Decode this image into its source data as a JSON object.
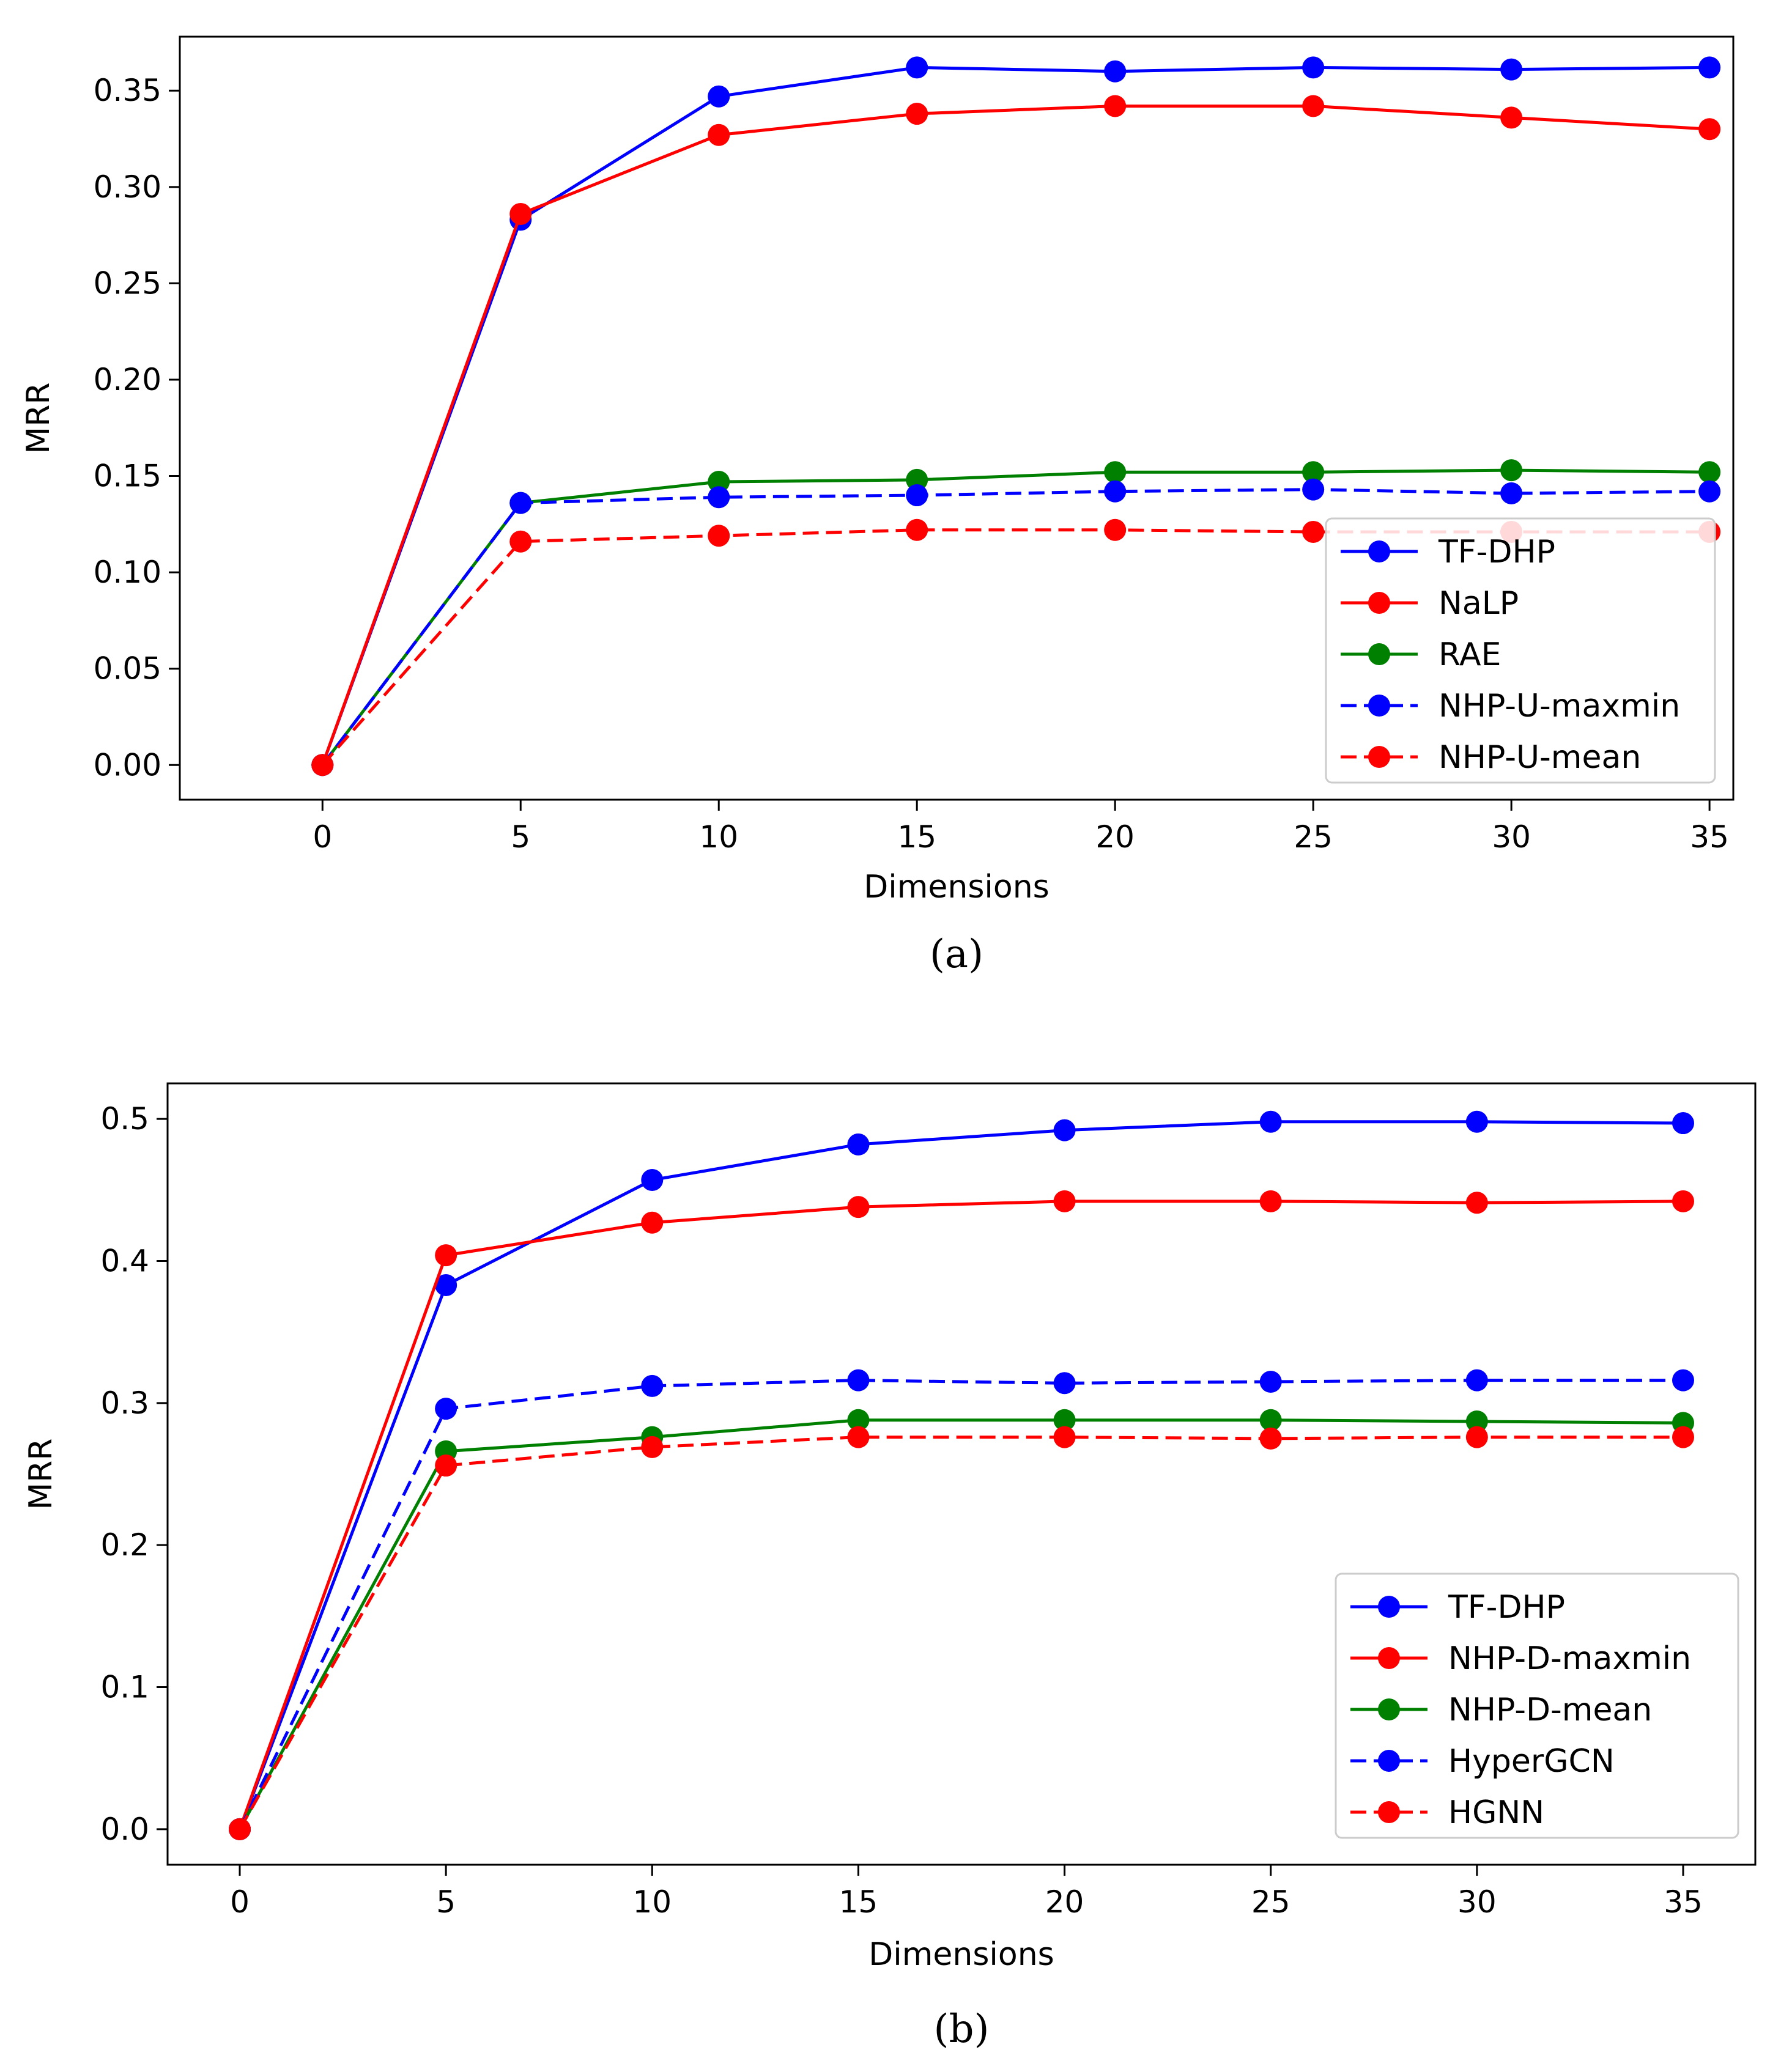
{
  "chart_data": [
    {
      "type": "line",
      "caption": "(a)",
      "xlabel": "Dimensions",
      "ylabel": "MRR",
      "xlim": [
        -3.6,
        35.6
      ],
      "ylim": [
        -0.018,
        0.378
      ],
      "x_ticks": [
        0,
        5,
        10,
        15,
        20,
        25,
        30,
        35
      ],
      "x_tick_labels": [
        "0",
        "5",
        "10",
        "15",
        "20",
        "25",
        "30",
        "35"
      ],
      "y_ticks": [
        0.0,
        0.05,
        0.1,
        0.15,
        0.2,
        0.25,
        0.3,
        0.35
      ],
      "y_tick_labels": [
        "0.00",
        "0.05",
        "0.10",
        "0.15",
        "0.20",
        "0.25",
        "0.30",
        "0.35"
      ],
      "legend_position": "lower-right",
      "x": [
        0,
        5,
        10,
        15,
        20,
        25,
        30,
        35
      ],
      "series": [
        {
          "name": "TF-DHP",
          "color": "#0000ff",
          "linestyle": "solid",
          "values": [
            0.0,
            0.283,
            0.347,
            0.362,
            0.36,
            0.362,
            0.361,
            0.362
          ]
        },
        {
          "name": "NaLP",
          "color": "#ff0000",
          "linestyle": "solid",
          "values": [
            0.0,
            0.286,
            0.327,
            0.338,
            0.342,
            0.342,
            0.336,
            0.33
          ]
        },
        {
          "name": "RAE",
          "color": "#008000",
          "linestyle": "solid",
          "values": [
            0.0,
            0.136,
            0.147,
            0.148,
            0.152,
            0.152,
            0.153,
            0.152
          ]
        },
        {
          "name": "NHP-U-maxmin",
          "color": "#0000ff",
          "linestyle": "dashed",
          "values": [
            0.0,
            0.136,
            0.139,
            0.14,
            0.142,
            0.143,
            0.141,
            0.142
          ]
        },
        {
          "name": "NHP-U-mean",
          "color": "#ff0000",
          "linestyle": "dashed",
          "values": [
            0.0,
            0.116,
            0.119,
            0.122,
            0.122,
            0.121,
            0.121,
            0.121
          ]
        }
      ]
    },
    {
      "type": "line",
      "caption": "(b)",
      "xlabel": "Dimensions",
      "ylabel": "MRR",
      "xlim": [
        -1.75,
        36.75
      ],
      "ylim": [
        -0.025,
        0.525
      ],
      "x_ticks": [
        0,
        5,
        10,
        15,
        20,
        25,
        30,
        35
      ],
      "x_tick_labels": [
        "0",
        "5",
        "10",
        "15",
        "20",
        "25",
        "30",
        "35"
      ],
      "y_ticks": [
        0.0,
        0.1,
        0.2,
        0.3,
        0.4,
        0.5
      ],
      "y_tick_labels": [
        "0.0",
        "0.1",
        "0.2",
        "0.3",
        "0.4",
        "0.5"
      ],
      "legend_position": "lower-right",
      "x": [
        0,
        5,
        10,
        15,
        20,
        25,
        30,
        35
      ],
      "series": [
        {
          "name": "TF-DHP",
          "color": "#0000ff",
          "linestyle": "solid",
          "values": [
            0.0,
            0.383,
            0.457,
            0.482,
            0.492,
            0.498,
            0.498,
            0.497
          ]
        },
        {
          "name": "NHP-D-maxmin",
          "color": "#ff0000",
          "linestyle": "solid",
          "values": [
            0.0,
            0.404,
            0.427,
            0.438,
            0.442,
            0.442,
            0.441,
            0.442
          ]
        },
        {
          "name": "NHP-D-mean",
          "color": "#008000",
          "linestyle": "solid",
          "values": [
            0.0,
            0.266,
            0.276,
            0.288,
            0.288,
            0.288,
            0.287,
            0.286
          ]
        },
        {
          "name": "HyperGCN",
          "color": "#0000ff",
          "linestyle": "dashed",
          "values": [
            0.0,
            0.296,
            0.312,
            0.316,
            0.314,
            0.315,
            0.316,
            0.316
          ]
        },
        {
          "name": "HGNN",
          "color": "#ff0000",
          "linestyle": "dashed",
          "values": [
            0.0,
            0.256,
            0.269,
            0.276,
            0.276,
            0.275,
            0.276,
            0.276
          ]
        }
      ]
    }
  ]
}
